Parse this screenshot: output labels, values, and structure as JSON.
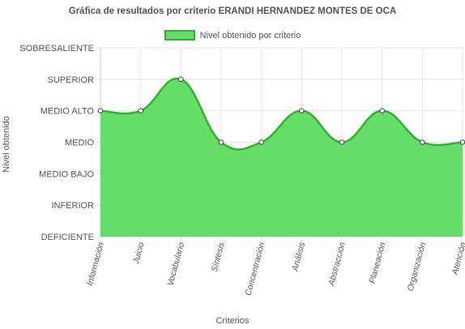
{
  "chart_data": {
    "type": "area",
    "title": "Gráfica de resultados por criterio ERANDI HERNANDEZ MONTES DE OCA",
    "xlabel": "Criterios",
    "ylabel": "Nivel obtenido",
    "y_categories": [
      "DEFICIENTE",
      "INFERIOR",
      "MEDIO BAJO",
      "MEDIO",
      "MEDIO ALTO",
      "SUPERIOR",
      "SOBRESALIENTE"
    ],
    "ylim": [
      0,
      6
    ],
    "categories": [
      "Información",
      "Juicio",
      "Vocabulario",
      "Síntesis",
      "Concentración",
      "Análisis",
      "Abstracción",
      "Planeación",
      "Organización",
      "Atención"
    ],
    "series": [
      {
        "name": "Nivel obtenido por criterio",
        "values": [
          4,
          4,
          5,
          3,
          3,
          4,
          3,
          4,
          3,
          3
        ]
      }
    ],
    "legend": "top-center",
    "grid": true,
    "colors": {
      "fill": "#66dd66",
      "line": "#2ab52a",
      "point_fill": "#ffffff",
      "point_stroke": "#444444",
      "grid": "#e3e3e3"
    }
  }
}
